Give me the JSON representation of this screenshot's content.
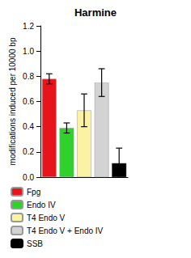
{
  "chart_data": {
    "type": "bar",
    "title": "Harmine",
    "y_label": "modifications induced per 10000 bp",
    "categories": [
      null,
      null,
      null,
      null,
      null
    ],
    "series": [
      {
        "name": "Fpg",
        "color": "#e8141b",
        "values": [
          0.78,
          null,
          null,
          null,
          null
        ],
        "errors": [
          0.04,
          null,
          null,
          null,
          null
        ]
      },
      {
        "name": "Endo IV",
        "color": "#2fd12a",
        "values": [
          null,
          0.39,
          null,
          null,
          null
        ],
        "errors": [
          null,
          0.04,
          null,
          null,
          null
        ]
      },
      {
        "name": "T4 Endo V",
        "color": "#fbf2a4",
        "values": [
          null,
          null,
          0.53,
          null,
          null
        ],
        "errors": [
          null,
          null,
          0.13,
          null,
          null
        ]
      },
      {
        "name": "T4 Endo V + Endo IV",
        "color": "#d3d3d3",
        "values": [
          null,
          null,
          null,
          0.75,
          null
        ],
        "errors": [
          null,
          null,
          null,
          0.11,
          null
        ]
      },
      {
        "name": "SSB",
        "color": "#000000",
        "values": [
          null,
          null,
          null,
          null,
          0.11
        ],
        "errors": [
          null,
          null,
          null,
          null,
          0.12
        ]
      }
    ],
    "ylim": [
      0,
      1.2
    ],
    "yticks": [
      {
        "value": 0,
        "label": "0.0"
      },
      0.2,
      0.4,
      0.6,
      0.8,
      {
        "value": 1,
        "label": "1.0"
      },
      1.2
    ],
    "grid": false,
    "tick_labels": "y",
    "legend": "bottom"
  }
}
